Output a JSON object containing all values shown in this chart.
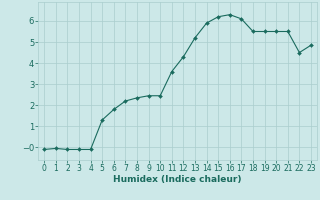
{
  "x": [
    0,
    1,
    2,
    3,
    4,
    5,
    6,
    7,
    8,
    9,
    10,
    11,
    12,
    13,
    14,
    15,
    16,
    17,
    18,
    19,
    20,
    21,
    22,
    23
  ],
  "y": [
    -0.1,
    -0.05,
    -0.1,
    -0.1,
    -0.1,
    1.3,
    1.8,
    2.2,
    2.35,
    2.45,
    2.45,
    3.6,
    4.3,
    5.2,
    5.9,
    6.2,
    6.3,
    6.1,
    5.5,
    5.5,
    5.5,
    5.5,
    4.5,
    4.85
  ],
  "line_color": "#1a6b5e",
  "marker": "D",
  "marker_size": 2.0,
  "bg_color": "#cce8e8",
  "grid_color": "#aacece",
  "axis_color": "#1a6b5e",
  "xlabel": "Humidex (Indice chaleur)",
  "xlim": [
    -0.5,
    23.5
  ],
  "ylim": [
    -0.6,
    6.9
  ],
  "xticks": [
    0,
    1,
    2,
    3,
    4,
    5,
    6,
    7,
    8,
    9,
    10,
    11,
    12,
    13,
    14,
    15,
    16,
    17,
    18,
    19,
    20,
    21,
    22,
    23
  ],
  "yticks": [
    0,
    1,
    2,
    3,
    4,
    5,
    6
  ],
  "ytick_labels": [
    "−0",
    "1",
    "2",
    "3",
    "4",
    "5",
    "6"
  ],
  "font_size_xlabel": 6.5,
  "font_size_ticks": 5.5
}
